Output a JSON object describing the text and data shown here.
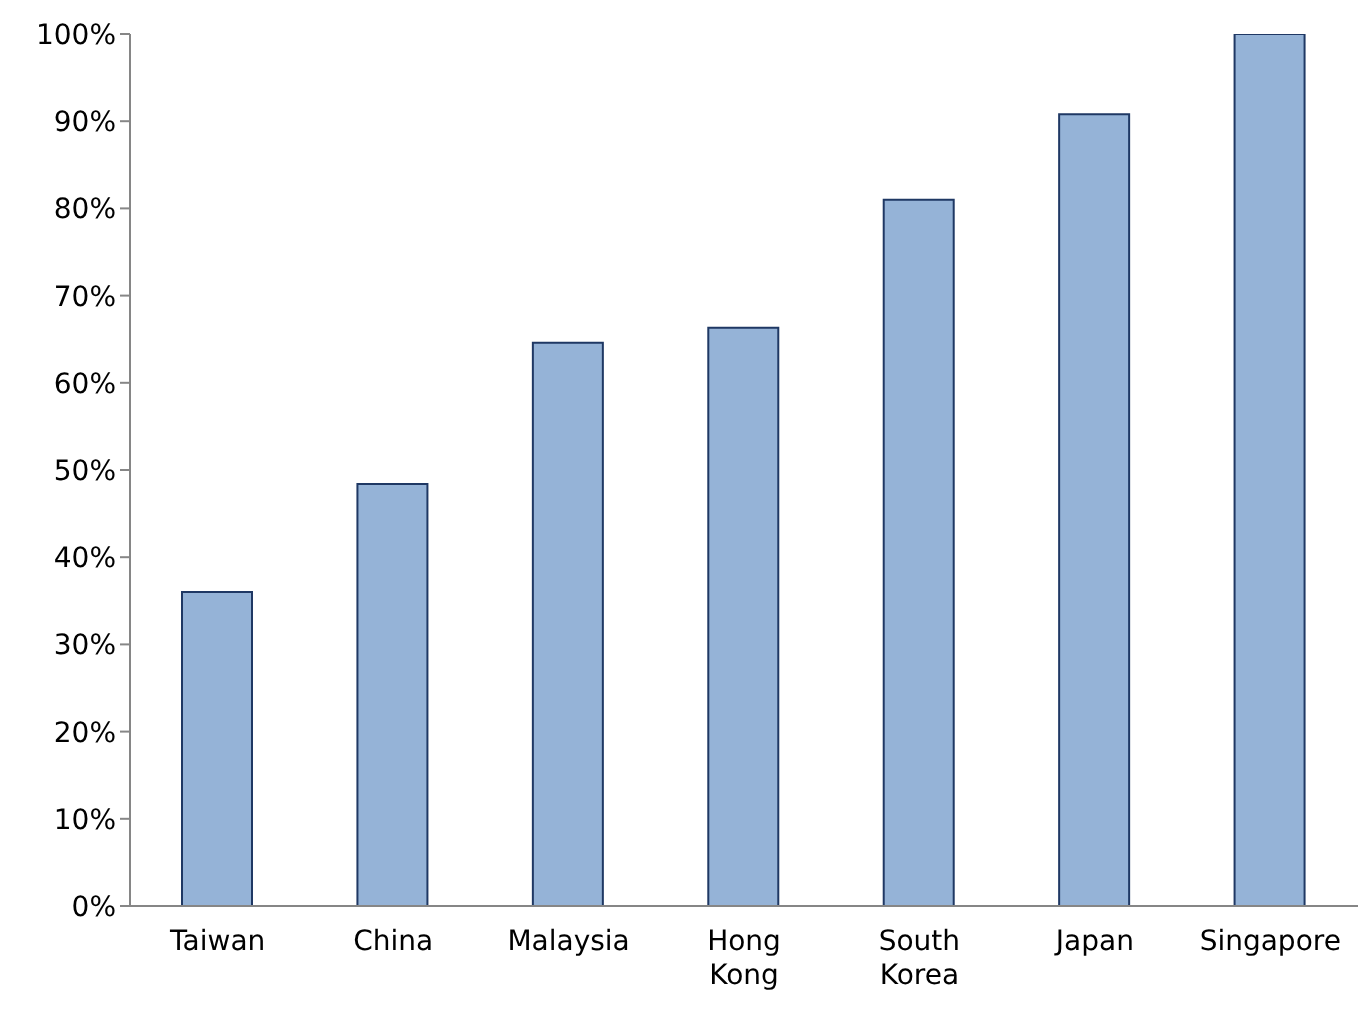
{
  "chart_data": {
    "type": "bar",
    "categories": [
      "Taiwan",
      "China",
      "Malaysia",
      "Hong Kong",
      "South Korea",
      "Japan",
      "Singapore"
    ],
    "values": [
      36,
      48.4,
      64.6,
      66.3,
      81,
      90.8,
      100
    ],
    "color": "#95b3d7",
    "ylim": [
      0,
      100
    ],
    "yticks": [
      {
        "value": 0,
        "label": "0%"
      },
      {
        "value": 10,
        "label": "10%"
      },
      {
        "value": 20,
        "label": "20%"
      },
      {
        "value": 30,
        "label": "30%"
      },
      {
        "value": 40,
        "label": "40%"
      },
      {
        "value": 50,
        "label": "50%"
      },
      {
        "value": 60,
        "label": "60%"
      },
      {
        "value": 70,
        "label": "70%"
      },
      {
        "value": 80,
        "label": "80%"
      },
      {
        "value": 90,
        "label": "90%"
      },
      {
        "value": 100,
        "label": "100%"
      }
    ],
    "grid": false,
    "legend": false
  }
}
